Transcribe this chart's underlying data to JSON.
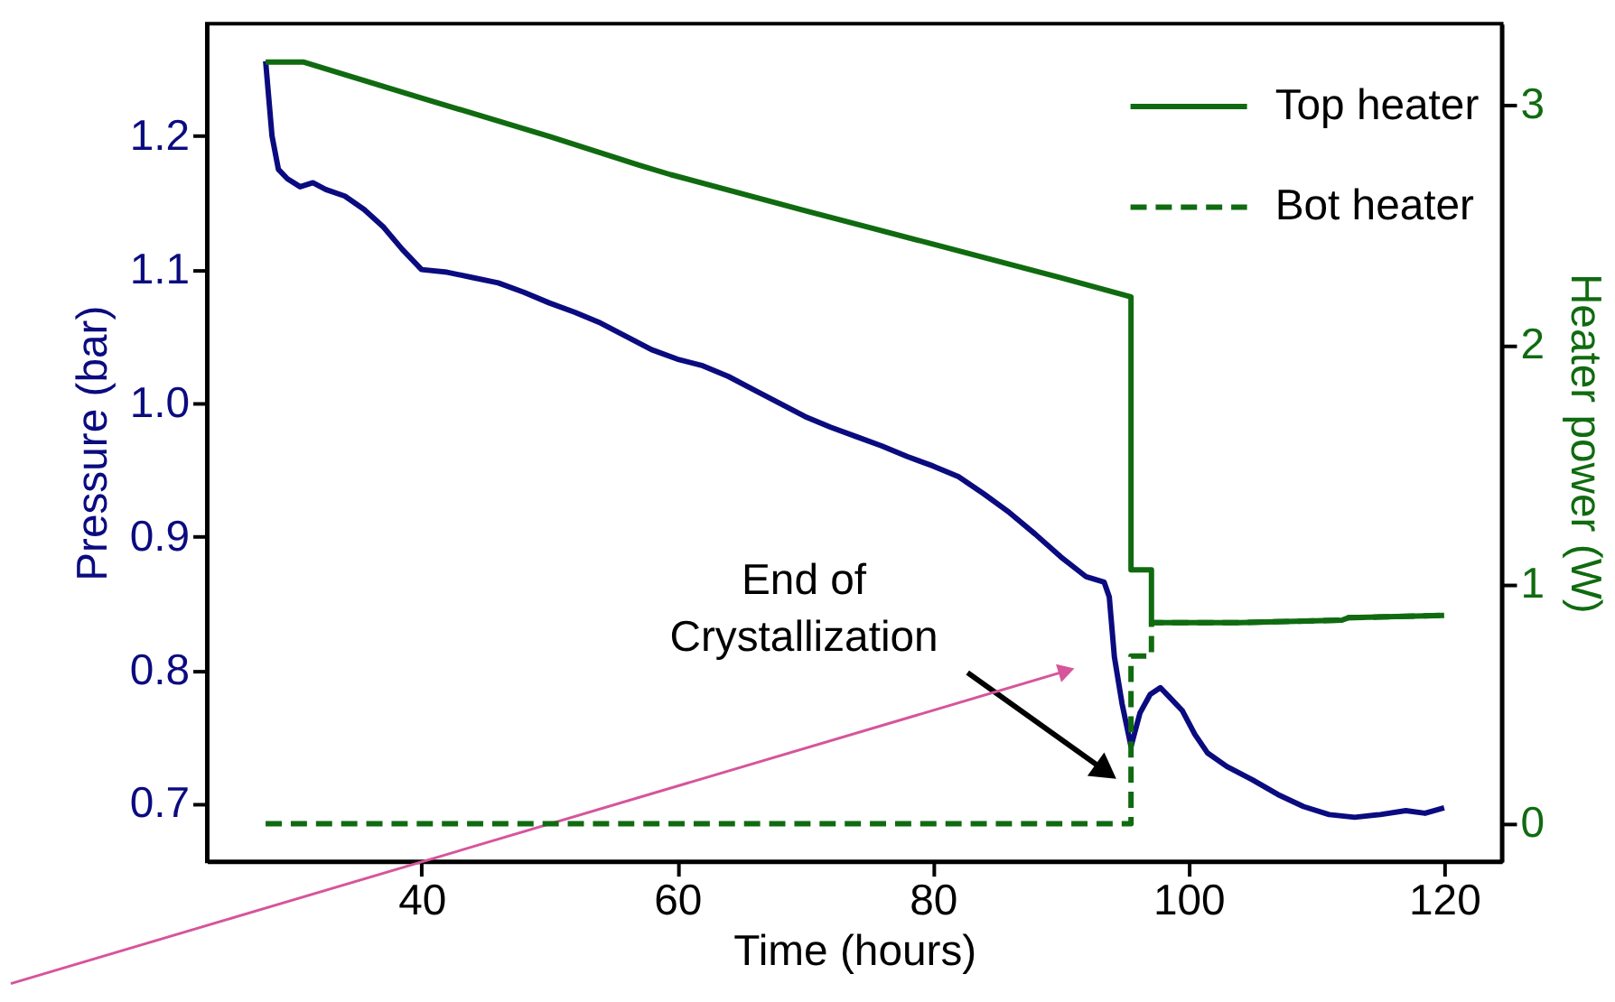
{
  "chart_data": {
    "type": "line",
    "xlabel": "Time (hours)",
    "ylabel": "Pressure (bar)",
    "y2label": "Heater power (W)",
    "xlim": [
      23.2,
      124.5
    ],
    "xticks": [
      40,
      60,
      80,
      100,
      120
    ],
    "ylim": [
      0.657,
      1.284
    ],
    "yticks": [
      0.7,
      0.8,
      0.9,
      {
        "value": 1.0,
        "label": "1.0"
      },
      1.1,
      1.2
    ],
    "y2lim": [
      -0.157,
      3.34
    ],
    "y2ticks": [
      0,
      1,
      2,
      3
    ],
    "grid": false,
    "legend": "top right",
    "marker": "none",
    "annotations": [
      "End of\nCrystallization"
    ],
    "series": [
      {
        "color": "#0b0b80",
        "line_style": "solid",
        "x": [
          27.8,
          28.3,
          28.8,
          29.5,
          30.5,
          31.5,
          32.5,
          34,
          35.5,
          37,
          38.5,
          40,
          42,
          44,
          46,
          48,
          50,
          52,
          54,
          56,
          58,
          60,
          62,
          64,
          66,
          68,
          70,
          72,
          74,
          76,
          78,
          80,
          82,
          84,
          86,
          88,
          90,
          92,
          93.4,
          93.8,
          94.2,
          94.8,
          95.5,
          96.2,
          97.0,
          97.8,
          98.5,
          99.5,
          100.5,
          101.5,
          103,
          105,
          107,
          109,
          111,
          113,
          115,
          117,
          118.5,
          120
        ],
        "values": [
          1.256,
          1.2,
          1.175,
          1.168,
          1.162,
          1.165,
          1.16,
          1.155,
          1.145,
          1.132,
          1.115,
          1.1,
          1.098,
          1.094,
          1.09,
          1.083,
          1.075,
          1.068,
          1.06,
          1.05,
          1.04,
          1.033,
          1.028,
          1.02,
          1.01,
          1.0,
          0.99,
          0.982,
          0.975,
          0.968,
          0.96,
          0.953,
          0.945,
          0.932,
          0.918,
          0.902,
          0.885,
          0.87,
          0.866,
          0.855,
          0.81,
          0.775,
          0.743,
          0.768,
          0.782,
          0.787,
          0.78,
          0.77,
          0.752,
          0.738,
          0.728,
          0.718,
          0.707,
          0.698,
          0.692,
          0.69,
          0.692,
          0.695,
          0.693,
          0.697
        ]
      },
      {
        "name": "Top heater",
        "color": "#106b10",
        "axis": "y2",
        "line_style": "solid",
        "x": [
          27.8,
          30.8,
          40,
          50,
          57,
          59.5,
          70,
          80,
          90,
          95.5,
          95.5,
          97.1,
          97.1,
          104,
          112,
          112.5,
          120
        ],
        "values": [
          3.18,
          3.18,
          3.03,
          2.87,
          2.75,
          2.71,
          2.56,
          2.42,
          2.28,
          2.2,
          1.06,
          1.06,
          0.84,
          0.84,
          0.85,
          0.86,
          0.87
        ]
      },
      {
        "name": "Bot heater",
        "color": "#106b10",
        "axis": "y2",
        "line_style": "dashed",
        "x": [
          27.8,
          95.5,
          95.5,
          97.1,
          97.1,
          104,
          112,
          112.5,
          120
        ],
        "values": [
          0,
          0,
          0.7,
          0.7,
          0.84,
          0.84,
          0.85,
          0.86,
          0.87
        ]
      }
    ]
  }
}
